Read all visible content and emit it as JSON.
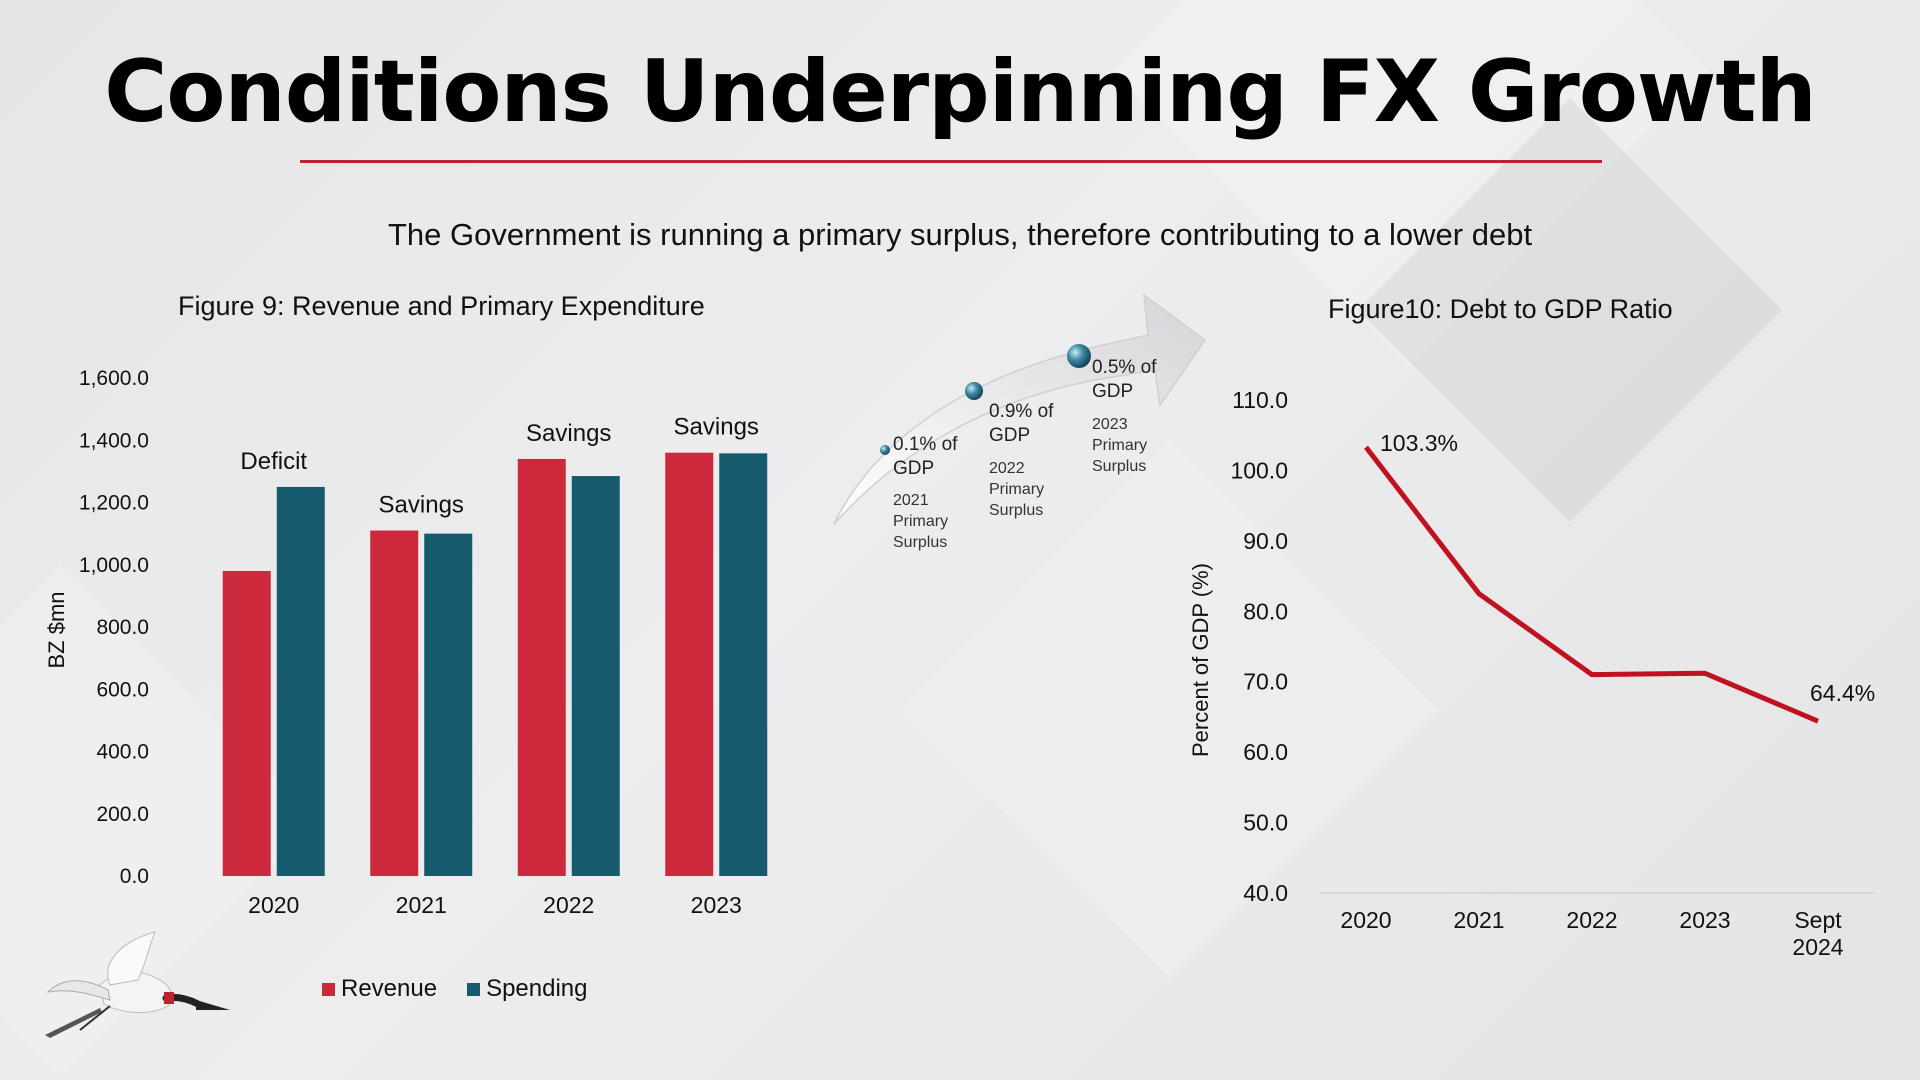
{
  "title": "Conditions Underpinning FX Growth",
  "subtitle": "The Government is running a primary surplus, therefore contributing to a lower debt",
  "colors": {
    "revenue": "#cc2a3c",
    "spending": "#165a6e",
    "line": "#c0121e",
    "accent_rule": "#c0212e"
  },
  "arrow_annotations": [
    {
      "pct": "0.1% of",
      "unit": "GDP",
      "year": "2021",
      "line1": "Primary",
      "line2": "Surplus"
    },
    {
      "pct": "0.9% of",
      "unit": "GDP",
      "year": "2022",
      "line1": "Primary",
      "line2": "Surplus"
    },
    {
      "pct": "0.5% of",
      "unit": "GDP",
      "year": "2023",
      "line1": "Primary",
      "line2": "Surplus"
    }
  ],
  "icons": [
    "jabiru-stork-logo",
    "curved-arrow-icon"
  ],
  "chart_data": [
    {
      "type": "bar",
      "title": "Figure 9: Revenue and Primary Expenditure",
      "ylabel": "BZ $mn",
      "xlabel": "",
      "ylim": [
        0,
        1600
      ],
      "yticks": [
        "0.0",
        "200.0",
        "400.0",
        "600.0",
        "800.0",
        "1,000.0",
        "1,200.0",
        "1,400.0",
        "1,600.0"
      ],
      "categories": [
        "2020",
        "2021",
        "2022",
        "2023"
      ],
      "series": [
        {
          "name": "Revenue",
          "values": [
            980,
            1110,
            1340,
            1360
          ]
        },
        {
          "name": "Spending",
          "values": [
            1250,
            1100,
            1285,
            1358
          ]
        }
      ],
      "bar_labels": [
        "Deficit",
        "Savings",
        "Savings",
        "Savings"
      ],
      "legend": "bottom",
      "grid": false
    },
    {
      "type": "line",
      "title": "Figure10: Debt to GDP Ratio",
      "ylabel": "Percent of GDP (%)",
      "xlabel": "",
      "ylim": [
        40,
        110
      ],
      "yticks": [
        "40.0",
        "50.0",
        "60.0",
        "70.0",
        "80.0",
        "90.0",
        "100.0",
        "110.0"
      ],
      "x": [
        "2020",
        "2021",
        "2022",
        "2023",
        "Sept 2024"
      ],
      "series": [
        {
          "values": [
            103.3,
            82.5,
            71.0,
            71.2,
            64.4
          ]
        }
      ],
      "point_labels": [
        {
          "index": 0,
          "text": "103.3%"
        },
        {
          "index": 4,
          "text": "64.4%"
        }
      ],
      "grid": false
    }
  ]
}
